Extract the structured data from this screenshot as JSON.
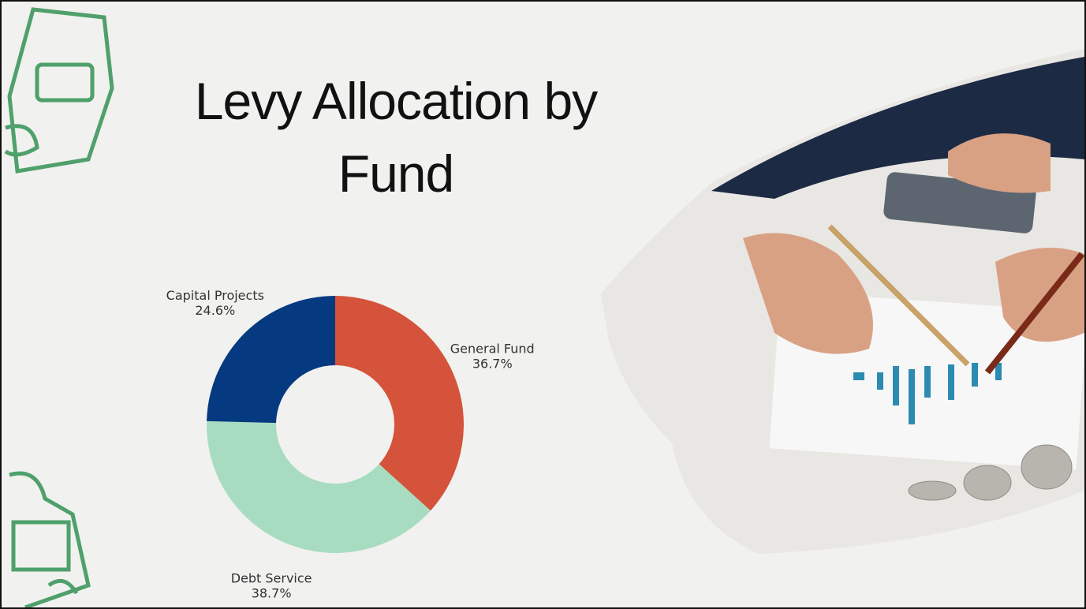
{
  "chart_data": {
    "type": "donut",
    "title": "Levy Allocation by Fund",
    "categories": [
      "General Fund",
      "Debt Service",
      "Capital Projects"
    ],
    "values": [
      36.7,
      38.7,
      24.6
    ],
    "value_labels": [
      "36.7%",
      "38.7%",
      "24.6%"
    ],
    "colors": [
      "#d4533a",
      "#a8dcc1",
      "#063a80"
    ]
  }
}
